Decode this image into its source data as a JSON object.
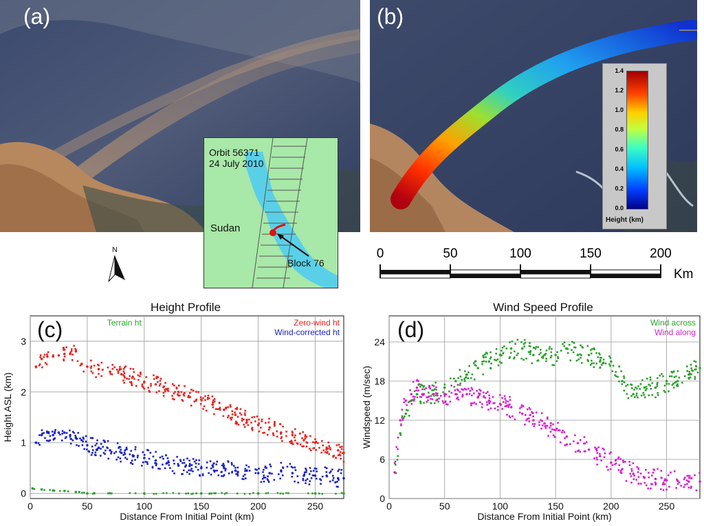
{
  "panels": {
    "a": {
      "label": "(a)"
    },
    "b": {
      "label": "(b)"
    },
    "c": {
      "label": "(c)"
    },
    "d": {
      "label": "(d)"
    }
  },
  "inset_map": {
    "orbit": "Orbit 56371",
    "date": "24 July 2010",
    "country": "Sudan",
    "block": "Block 76"
  },
  "north_arrow": {
    "letter": "N"
  },
  "colorbar": {
    "title": "Height (km)",
    "ticks": [
      "0.0",
      "0.2",
      "0.4",
      "0.6",
      "0.8",
      "1.0",
      "1.2",
      "1.4"
    ]
  },
  "scale_bar": {
    "ticks": [
      "0",
      "50",
      "100",
      "150",
      "200"
    ],
    "unit": "Km"
  },
  "colors": {
    "red": "#e8231e",
    "blue": "#1a22c8",
    "green": "#2ca02c",
    "magenta": "#d81fd0"
  },
  "chart_data": [
    {
      "type": "scatter",
      "title": "Height Profile",
      "xlabel": "Distance From Initial Point (km)",
      "ylabel": "Height ASL (km)",
      "xlim": [
        0,
        275
      ],
      "ylim": [
        -0.1,
        3.5
      ],
      "xticks": [
        0,
        50,
        100,
        150,
        200,
        250
      ],
      "yticks": [
        0,
        1,
        2,
        3
      ],
      "grid": true,
      "legend": [
        "Terrain ht",
        "Zero-wind ht",
        "Wind-corrected ht"
      ],
      "series": [
        {
          "name": "Zero-wind ht",
          "color": "red",
          "x": [
            5,
            10,
            15,
            20,
            25,
            30,
            35,
            40,
            45,
            50,
            60,
            70,
            80,
            90,
            100,
            110,
            120,
            130,
            140,
            150,
            160,
            170,
            180,
            190,
            200,
            210,
            220,
            230,
            240,
            250,
            260,
            270,
            275
          ],
          "y": [
            2.5,
            2.65,
            2.7,
            2.7,
            2.72,
            2.75,
            2.75,
            2.8,
            2.55,
            2.5,
            2.45,
            2.4,
            2.35,
            2.3,
            2.2,
            2.15,
            2.05,
            2.0,
            1.9,
            1.85,
            1.75,
            1.65,
            1.55,
            1.45,
            1.35,
            1.3,
            1.2,
            1.15,
            1.05,
            1.0,
            0.9,
            0.85,
            0.8
          ]
        },
        {
          "name": "Wind-corrected ht",
          "color": "blue",
          "x": [
            5,
            10,
            15,
            20,
            25,
            30,
            35,
            40,
            45,
            50,
            60,
            70,
            80,
            90,
            100,
            110,
            120,
            130,
            140,
            150,
            160,
            170,
            180,
            190,
            200,
            210,
            220,
            230,
            240,
            250,
            260,
            270,
            275
          ],
          "y": [
            1.0,
            1.15,
            1.2,
            1.15,
            1.2,
            1.2,
            1.15,
            1.1,
            1.05,
            0.95,
            0.9,
            0.85,
            0.8,
            0.75,
            0.7,
            0.65,
            0.6,
            0.55,
            0.55,
            0.5,
            0.55,
            0.5,
            0.45,
            0.45,
            0.4,
            0.4,
            0.45,
            0.4,
            0.35,
            0.35,
            0.35,
            0.3,
            0.3
          ]
        },
        {
          "name": "Terrain ht",
          "color": "green",
          "x": [
            2,
            10,
            20,
            30,
            40,
            50,
            100,
            150,
            200,
            250,
            275
          ],
          "y": [
            0.1,
            0.08,
            0.06,
            0.05,
            0.03,
            0.0,
            0.0,
            0.0,
            0.0,
            0.0,
            0.0
          ]
        }
      ]
    },
    {
      "type": "scatter",
      "title": "Wind Speed Profile",
      "xlabel": "Distance From Initial Point (km)",
      "ylabel": "Windspeed (m/sec)",
      "xlim": [
        0,
        280
      ],
      "ylim": [
        0,
        28
      ],
      "xticks": [
        0,
        50,
        100,
        150,
        200,
        250
      ],
      "yticks": [
        0,
        6,
        12,
        18,
        24
      ],
      "grid": true,
      "legend": [
        "Wind across",
        "Wind along"
      ],
      "series": [
        {
          "name": "Wind across",
          "color": "green",
          "x": [
            5,
            10,
            15,
            20,
            25,
            30,
            40,
            50,
            60,
            70,
            80,
            90,
            100,
            110,
            120,
            130,
            140,
            150,
            160,
            170,
            180,
            190,
            200,
            210,
            220,
            230,
            240,
            250,
            260,
            270,
            280
          ],
          "y": [
            4,
            10,
            13,
            15,
            16,
            16,
            16,
            17,
            18,
            19,
            20,
            21,
            22,
            23,
            23,
            22,
            22,
            22,
            23,
            22,
            22,
            21,
            21,
            18,
            16,
            17,
            17,
            18,
            18,
            19,
            20
          ]
        },
        {
          "name": "Wind along",
          "color": "magenta",
          "x": [
            5,
            10,
            15,
            20,
            25,
            30,
            40,
            50,
            60,
            70,
            80,
            90,
            100,
            110,
            120,
            130,
            140,
            150,
            160,
            170,
            180,
            190,
            200,
            210,
            220,
            230,
            240,
            250,
            260,
            270,
            280
          ],
          "y": [
            4,
            12,
            15,
            16,
            17,
            16,
            16,
            16,
            16,
            16,
            15.5,
            15,
            14.5,
            14,
            13,
            12,
            11.5,
            10.5,
            9.5,
            8.5,
            7.5,
            6.5,
            5.5,
            4.5,
            3.8,
            3.2,
            3.0,
            2.8,
            2.7,
            2.6,
            2.6
          ]
        }
      ]
    }
  ]
}
